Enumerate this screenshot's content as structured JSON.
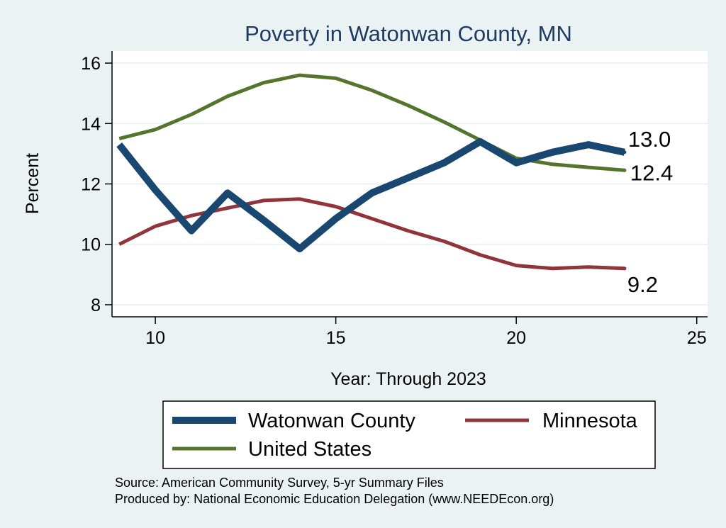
{
  "chart_data": {
    "type": "line",
    "title": "Poverty in Watonwan County, MN",
    "xlabel": "Year: Through 2023",
    "ylabel": "Percent",
    "xlim": [
      8.8,
      25.3
    ],
    "ylim": [
      7.6,
      16.4
    ],
    "xticks": [
      10,
      15,
      20,
      25
    ],
    "yticks": [
      8,
      10,
      12,
      14,
      16
    ],
    "grid": true,
    "legend_position": "bottom",
    "series": [
      {
        "name": "Watonwan County",
        "color": "#1a476f",
        "x": [
          9,
          10,
          11,
          12,
          13,
          14,
          15,
          16,
          17,
          18,
          19,
          20,
          21,
          22,
          23
        ],
        "values": [
          13.3,
          11.8,
          10.45,
          11.7,
          10.8,
          9.85,
          10.85,
          11.7,
          12.2,
          12.7,
          13.4,
          12.7,
          13.05,
          13.3,
          13.05
        ],
        "end_label": "13.0"
      },
      {
        "name": "Minnesota",
        "color": "#90353b",
        "x": [
          9,
          10,
          11,
          12,
          13,
          14,
          15,
          16,
          17,
          18,
          19,
          20,
          21,
          22,
          23
        ],
        "values": [
          10.0,
          10.6,
          10.95,
          11.2,
          11.45,
          11.5,
          11.25,
          10.85,
          10.45,
          10.1,
          9.65,
          9.3,
          9.2,
          9.25,
          9.2
        ],
        "end_label": "9.2"
      },
      {
        "name": "United States",
        "color": "#55752f",
        "x": [
          9,
          10,
          11,
          12,
          13,
          14,
          15,
          16,
          17,
          18,
          19,
          20,
          21,
          22,
          23
        ],
        "values": [
          13.5,
          13.8,
          14.3,
          14.9,
          15.35,
          15.6,
          15.5,
          15.1,
          14.6,
          14.05,
          13.45,
          12.85,
          12.65,
          12.55,
          12.45
        ],
        "end_label": "12.4"
      }
    ]
  },
  "legend": {
    "items": [
      "Watonwan County",
      "Minnesota",
      "United States"
    ]
  },
  "notes": {
    "source": "Source: American Community Survey, 5-yr Summary Files",
    "produced": "Produced by: National Economic Education Delegation (www.NEEDEcon.org)"
  },
  "colors": {
    "page_background": "#eaf2f3",
    "plot_background": "#ffffff",
    "grid": "#eaf2f3",
    "title": "#1e3a5f"
  }
}
